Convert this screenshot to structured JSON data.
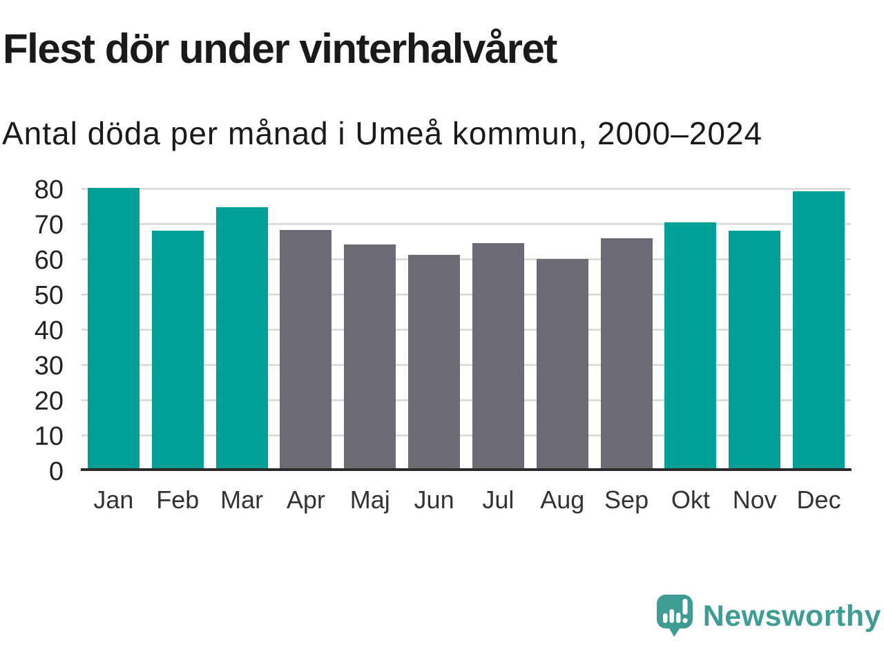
{
  "page": {
    "background": "#ffffff"
  },
  "header": {
    "title": "Flest dör under vinterhalvåret",
    "subtitle": "Antal döda per månad i Umeå kommun, 2000–2024"
  },
  "chart_data": {
    "type": "bar",
    "title": "Flest dör under vinterhalvåret",
    "subtitle": "Antal döda per månad i Umeå kommun, 2000–2024",
    "categories": [
      "Jan",
      "Feb",
      "Mar",
      "Apr",
      "Maj",
      "Jun",
      "Jul",
      "Aug",
      "Sep",
      "Okt",
      "Nov",
      "Dec"
    ],
    "values": [
      80.2,
      68,
      74.8,
      68.3,
      64.2,
      61.2,
      64.6,
      60,
      65.8,
      70.3,
      68.1,
      79.2
    ],
    "winter_months": [
      "Jan",
      "Feb",
      "Mar",
      "Okt",
      "Nov",
      "Dec"
    ],
    "colors": {
      "winter_bar": "#00a096",
      "summer_bar": "#6e6a73",
      "gridline": "#dcdcdc",
      "axis": "#2b2b2b"
    },
    "ylim": [
      0,
      80
    ],
    "yticks": [
      0,
      10,
      20,
      30,
      40,
      50,
      60,
      70,
      80
    ],
    "grid": true,
    "legend": "none",
    "xlabel": "",
    "ylabel": ""
  },
  "brand": {
    "name": "Newsworthy",
    "color": "#3f9c94",
    "icon": "speech-bubble-bar-chart-icon"
  }
}
